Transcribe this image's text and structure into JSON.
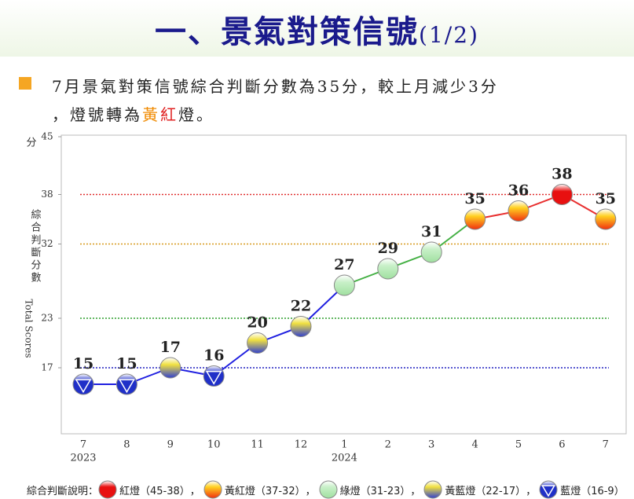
{
  "header": {
    "title": "一、景氣對策信號",
    "title_suffix": "(1/2)"
  },
  "bullet": {
    "line1": "7月景氣對策信號綜合判斷分數為35分，較上月減少3分",
    "line2_start": "，燈號轉為",
    "word_yellow": "黃",
    "word_red": "紅",
    "line2_end": "燈。",
    "word_yellow_color": "#f08a00",
    "word_red_color": "#e02020"
  },
  "chart_data": {
    "type": "line",
    "y_unit": "分",
    "y_label_zh": "綜合判斷分數",
    "y_label_en": "Total Scores",
    "categories": [
      "7",
      "8",
      "9",
      "10",
      "11",
      "12",
      "1",
      "2",
      "3",
      "4",
      "5",
      "6",
      "7"
    ],
    "x_sublabels": [
      "2023",
      null,
      null,
      null,
      null,
      null,
      "2024",
      null,
      null,
      null,
      null,
      null,
      null
    ],
    "values": [
      15,
      15,
      17,
      16,
      20,
      22,
      27,
      29,
      31,
      35,
      36,
      38,
      35
    ],
    "point_colors": [
      "#2030c8",
      "#2030c8",
      "#f0e040",
      "#2030c8",
      "#f0e040",
      "#f0e040",
      "#c8f0c8",
      "#c8f0c8",
      "#c8f0c8",
      "#ffd020",
      "#ffd020",
      "#e81010",
      "#ffd020"
    ],
    "line_colors": [
      "#2020e0",
      "#2020e0",
      "#2020e0",
      "#2020e0",
      "#2020e0",
      "#2020e0",
      "#44b044",
      "#44b044",
      "#44b044",
      "#e83030",
      "#e83030",
      "#e83030"
    ],
    "ylim": [
      9,
      45
    ],
    "yticks": [
      17,
      23,
      32,
      38,
      45
    ],
    "reference_lines": [
      {
        "value": 38,
        "color": "#e03030"
      },
      {
        "value": 32,
        "color": "#d89a20"
      },
      {
        "value": 23,
        "color": "#30a030"
      },
      {
        "value": 17,
        "color": "#2020c0"
      }
    ],
    "legend_title": "綜合判斷說明：",
    "legend": [
      {
        "label": "紅燈（45-38）",
        "color": "#e81010",
        "color2": "#e81010"
      },
      {
        "label": "黃紅燈（37-32）",
        "color": "#ffd020",
        "color2": "#f03010"
      },
      {
        "label": "綠燈（31-23）",
        "color": "#c8f0c8",
        "color2": "#a0e0a0"
      },
      {
        "label": "黃藍燈（22-17）",
        "color": "#f0e040",
        "color2": "#3040d0"
      },
      {
        "label": "藍燈（16-9）",
        "color": "#2030c8",
        "color2": "#2030c8",
        "symbol": "triangle-down"
      }
    ],
    "legend_separator": "，"
  }
}
